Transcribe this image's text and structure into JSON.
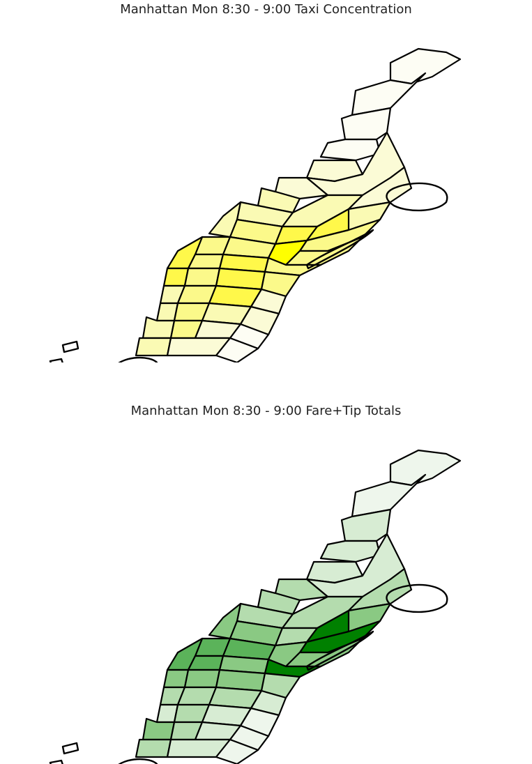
{
  "maps": [
    {
      "id": "concentration",
      "title": "Manhattan Mon 8:30 - 9:00 Taxi Concentration",
      "palette": [
        "#fdfdf4",
        "#fbfbd6",
        "#fafab4",
        "#fbf98a",
        "#fff84a",
        "#ffff00"
      ]
    },
    {
      "id": "fare-tip",
      "title": "Manhattan Mon 8:30 - 9:00 Fare+Tip Totals",
      "palette": [
        "#eef6ec",
        "#d7ecd3",
        "#b4dcae",
        "#8ac983",
        "#5bb35a",
        "#008000"
      ]
    }
  ]
}
